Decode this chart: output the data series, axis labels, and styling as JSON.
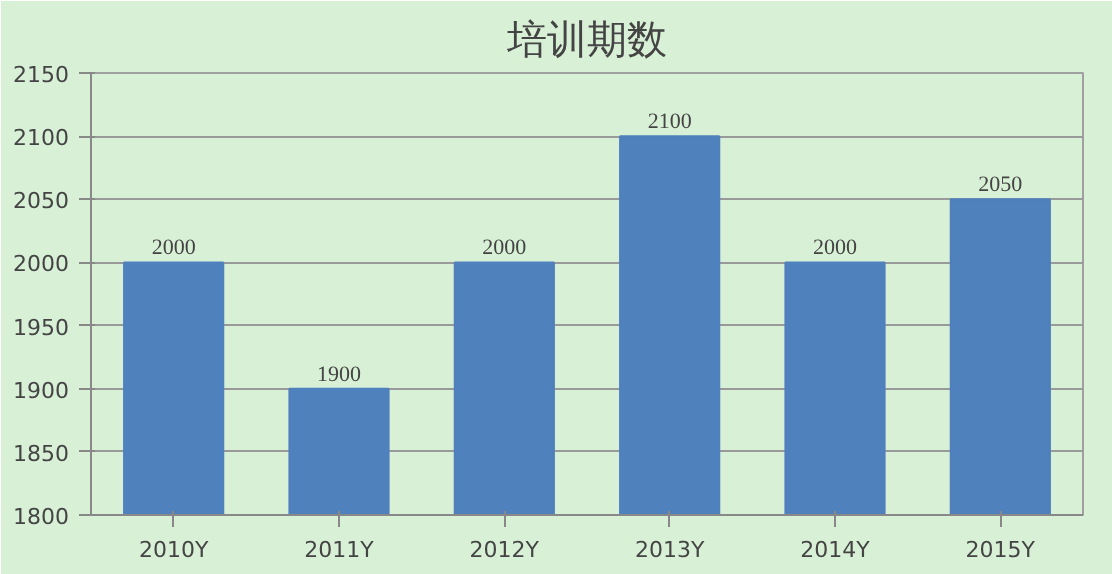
{
  "chart_data": {
    "type": "bar",
    "title": "培训期数",
    "categories": [
      "2010Y",
      "2011Y",
      "2012Y",
      "2013Y",
      "2014Y",
      "2015Y"
    ],
    "values": [
      2000,
      1900,
      2000,
      2100,
      2000,
      2050
    ],
    "color": "#4f81bd",
    "ylim": [
      1800,
      2150
    ],
    "yticks": [
      1800,
      1850,
      1900,
      1950,
      2000,
      2050,
      2100,
      2150
    ],
    "grid": "y",
    "data_labels": true
  }
}
